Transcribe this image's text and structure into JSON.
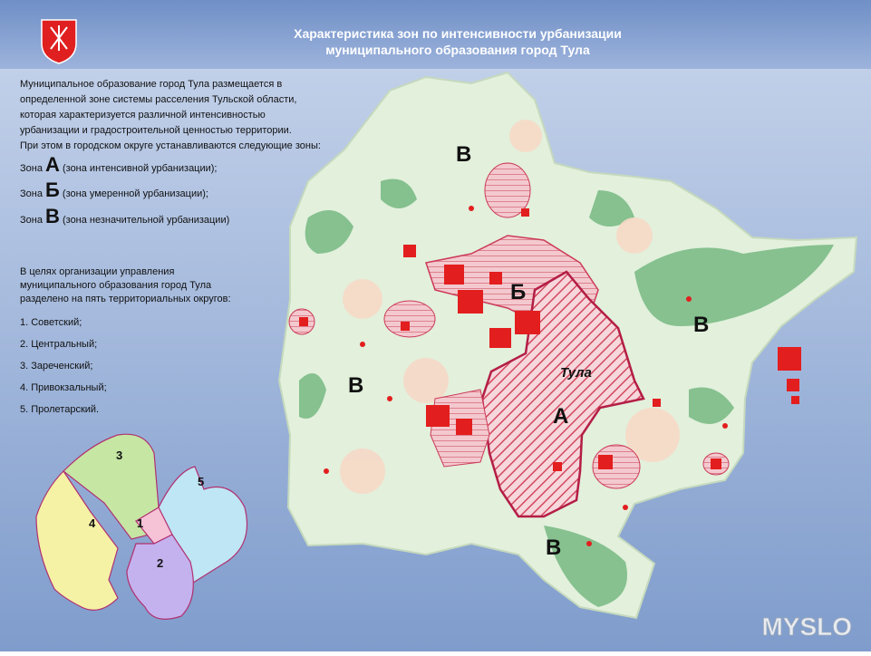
{
  "header": {
    "title": [
      "Характеристика зон по интенсивности урбанизации",
      "муниципального образования город Тула"
    ]
  },
  "intro": [
    "Муниципальное образование город Тула размещается в",
    "определенной  зоне системы расселения Тульской области,",
    "которая характеризуется различной интенсивностью",
    "урбанизации и градостроительной ценностью территории.",
    "При этом в городском округе устанавливаются следующие зоны:"
  ],
  "zones": [
    {
      "prefix": "Зона",
      "letter": "А",
      "text": "(зона интенсивной урбанизации);"
    },
    {
      "prefix": "Зона",
      "letter": "Б",
      "text": "(зона умеренной урбанизации);"
    },
    {
      "prefix": "Зона",
      "letter": "В",
      "text": "(зона незначительной урбанизации)"
    }
  ],
  "districts": {
    "intro": [
      "В целях организации управления",
      "муниципального образования город Тула",
      "разделено на пять территориальных округов:"
    ],
    "items": [
      "1. Советский;",
      "2. Центральный;",
      "3. Зареченский;",
      "4. Привокзальный;",
      "5. Пролетарский."
    ]
  },
  "map": {
    "labels": [
      "В",
      "Б",
      "В",
      "В",
      "А",
      "Тула",
      "В"
    ]
  },
  "inset": {
    "labels": [
      "3",
      "5",
      "4",
      "1",
      "2"
    ]
  },
  "watermark": "MYSLO"
}
